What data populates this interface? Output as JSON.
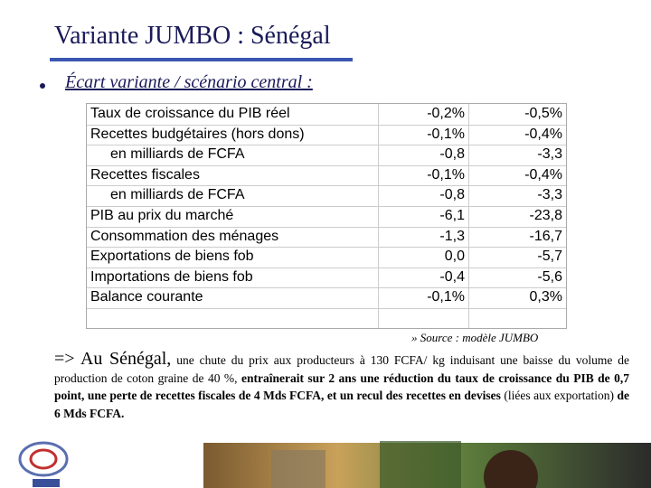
{
  "header": {
    "title": "Variante JUMBO : Sénégal",
    "bullet": "Écart variante / scénario central :"
  },
  "table": {
    "rows": [
      {
        "label": "Taux de croissance du PIB réel",
        "v1": "-0,2%",
        "v2": "-0,5%",
        "indent": false
      },
      {
        "label": "Recettes budgétaires (hors dons)",
        "v1": "-0,1%",
        "v2": "-0,4%",
        "indent": false
      },
      {
        "label": "en milliards de FCFA",
        "v1": "-0,8",
        "v2": "-3,3",
        "indent": true
      },
      {
        "label": "Recettes fiscales",
        "v1": "-0,1%",
        "v2": "-0,4%",
        "indent": false
      },
      {
        "label": "en milliards de FCFA",
        "v1": "-0,8",
        "v2": "-3,3",
        "indent": true
      },
      {
        "label": "PIB au prix du marché",
        "v1": "-6,1",
        "v2": "-23,8",
        "indent": false
      },
      {
        "label": "Consommation des ménages",
        "v1": "-1,3",
        "v2": "-16,7",
        "indent": false
      },
      {
        "label": "Exportations de biens fob",
        "v1": "0,0",
        "v2": "-5,7",
        "indent": false
      },
      {
        "label": "Importations de biens fob",
        "v1": "-0,4",
        "v2": "-5,6",
        "indent": false
      },
      {
        "label": "Balance courante",
        "v1": "-0,1%",
        "v2": "0,3%",
        "indent": false
      }
    ]
  },
  "source": "» Source : modèle JUMBO",
  "paragraph": {
    "segments": [
      {
        "text": "=> Au Sénégal,",
        "style": "large"
      },
      {
        "text": " une chute du prix aux producteurs à 130 FCFA/ kg induisant une baisse du volume de production de coton graine de 40 %, ",
        "style": "normal"
      },
      {
        "text": "entraînerait sur 2 ans une réduction du taux de croissance du PIB de 0,7 point, une perte de recettes fiscales de 4 Mds FCFA, et un recul des recettes en devises",
        "style": "bold"
      },
      {
        "text": " (liées aux exportation) ",
        "style": "normal"
      },
      {
        "text": "de 6 Mds FCFA.",
        "style": "bold"
      }
    ]
  }
}
